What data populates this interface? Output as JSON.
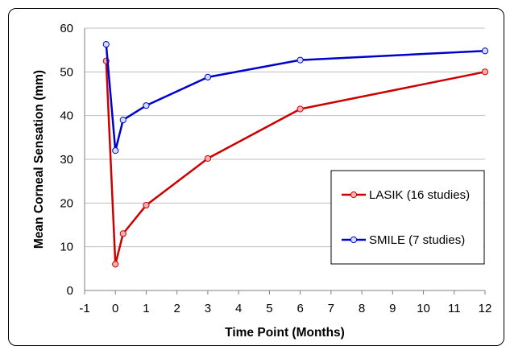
{
  "chart_data": {
    "type": "line",
    "xlabel": "Time Point (Months)",
    "ylabel": "Mean Corneal Sensation (mm)",
    "xlim": [
      -1,
      12
    ],
    "ylim": [
      0,
      60
    ],
    "x_ticks": [
      -1,
      0,
      1,
      2,
      3,
      4,
      5,
      6,
      7,
      8,
      9,
      10,
      11,
      12
    ],
    "y_ticks": [
      0,
      10,
      20,
      30,
      40,
      50,
      60
    ],
    "grid": "horizontal",
    "legend_position": "right",
    "series": [
      {
        "name": "LASIK (16 studies)",
        "color": "#cc0000",
        "marker_fill": "#f4b0b0",
        "x": [
          -0.3,
          0,
          0.25,
          1,
          3,
          6,
          12
        ],
        "y": [
          52.5,
          6,
          13,
          19.5,
          30.2,
          41.5,
          50
        ]
      },
      {
        "name": "SMILE (7 studies)",
        "color": "#0000cc",
        "marker_fill": "#cfe0f5",
        "x": [
          -0.3,
          0,
          0.25,
          1,
          3,
          6,
          12
        ],
        "y": [
          56.3,
          32,
          39,
          42.3,
          48.8,
          52.7,
          54.8
        ]
      }
    ]
  }
}
